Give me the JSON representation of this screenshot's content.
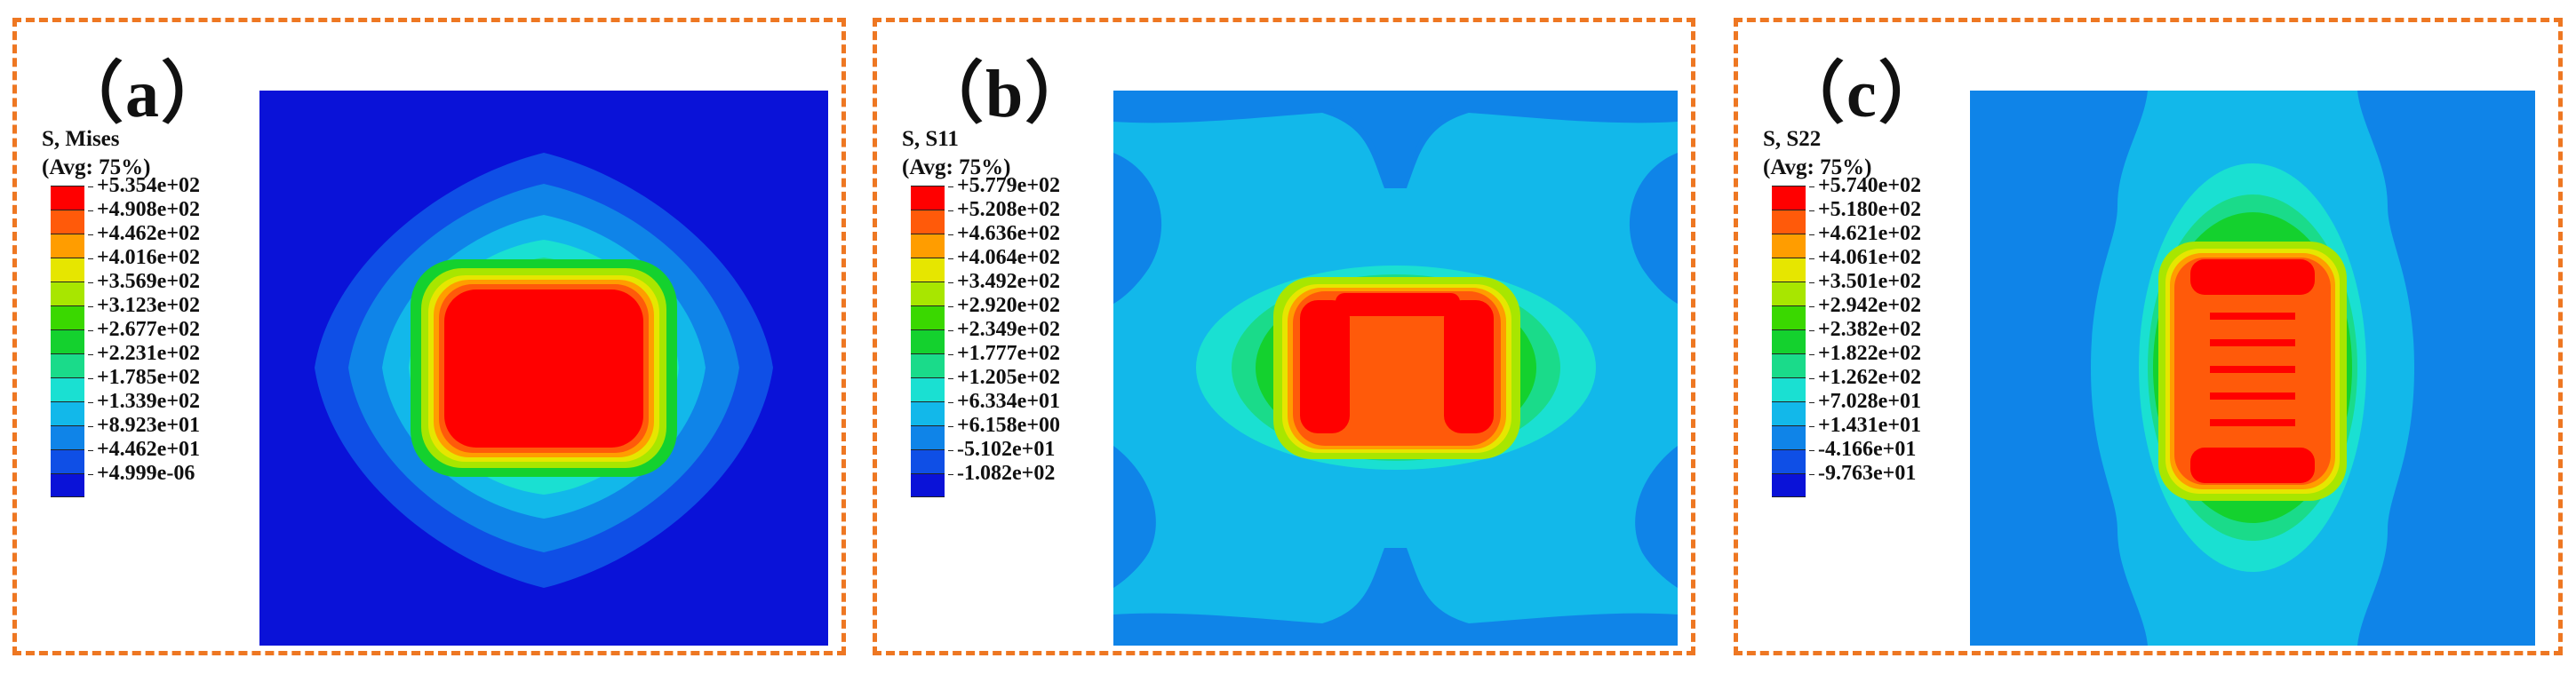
{
  "colors": {
    "border": "#ee7722",
    "legend": [
      "#ff0000",
      "#ff5a0a",
      "#ff9d00",
      "#e6e600",
      "#a8e600",
      "#3ad800",
      "#14d12e",
      "#1adb8a",
      "#1ae0d2",
      "#12b8ea",
      "#0f84e8",
      "#0f4fe6",
      "#0a12d8"
    ]
  },
  "panels": [
    {
      "label": "（a）",
      "title_line1": "S, Mises",
      "title_line2": "(Avg: 75%)",
      "ticks": [
        "+5.354e+02",
        "+4.908e+02",
        "+4.462e+02",
        "+4.016e+02",
        "+3.569e+02",
        "+3.123e+02",
        "+2.677e+02",
        "+2.231e+02",
        "+1.785e+02",
        "+1.339e+02",
        "+8.923e+01",
        "+4.462e+01",
        "+4.999e-06"
      ]
    },
    {
      "label": "（b）",
      "title_line1": "S, S11",
      "title_line2": "(Avg: 75%)",
      "ticks": [
        "+5.779e+02",
        "+5.208e+02",
        "+4.636e+02",
        "+4.064e+02",
        "+3.492e+02",
        "+2.920e+02",
        "+2.349e+02",
        "+1.777e+02",
        "+1.205e+02",
        "+6.334e+01",
        "+6.158e+00",
        "-5.102e+01",
        "-1.082e+02"
      ]
    },
    {
      "label": "（c）",
      "title_line1": "S, S22",
      "title_line2": "(Avg: 75%)",
      "ticks": [
        "+5.740e+02",
        "+5.180e+02",
        "+4.621e+02",
        "+4.061e+02",
        "+3.501e+02",
        "+2.942e+02",
        "+2.382e+02",
        "+1.822e+02",
        "+1.262e+02",
        "+7.028e+01",
        "+1.431e+01",
        "-4.166e+01",
        "-9.763e+01"
      ]
    }
  ]
}
